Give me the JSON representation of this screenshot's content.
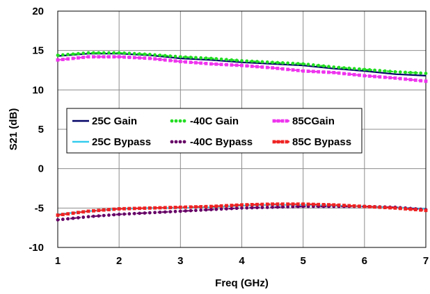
{
  "chart_data": {
    "type": "line",
    "xlabel": "Freq (GHz)",
    "ylabel": "S21 (dB)",
    "xlim": [
      1,
      7
    ],
    "ylim": [
      -10,
      20
    ],
    "x_ticks": [
      "1",
      "2",
      "3",
      "4",
      "5",
      "6",
      "7"
    ],
    "y_ticks": [
      "-10",
      "-5",
      "0",
      "5",
      "10",
      "15",
      "20"
    ],
    "grid": true,
    "legend_placement": "center-left",
    "series": [
      {
        "name": "25C Gain",
        "color": "#000066",
        "style": "solid",
        "marker": "none",
        "x": [
          1,
          1.5,
          2,
          2.5,
          3,
          3.5,
          4,
          4.5,
          5,
          5.5,
          6,
          6.5,
          7
        ],
        "y": [
          14.3,
          14.6,
          14.6,
          14.4,
          14.0,
          13.8,
          13.5,
          13.3,
          13.1,
          12.7,
          12.4,
          12.0,
          11.8
        ]
      },
      {
        "name": "-40C Gain",
        "color": "#22dd22",
        "style": "dotted",
        "marker": "circle",
        "x": [
          1,
          1.5,
          2,
          2.5,
          3,
          3.5,
          4,
          4.5,
          5,
          5.5,
          6,
          6.5,
          7
        ],
        "y": [
          14.4,
          14.7,
          14.7,
          14.5,
          14.2,
          14.0,
          13.7,
          13.5,
          13.3,
          12.9,
          12.6,
          12.3,
          12.1
        ]
      },
      {
        "name": "85CGain",
        "color": "#ee33ee",
        "style": "dashed",
        "marker": "square",
        "x": [
          1,
          1.5,
          2,
          2.5,
          3,
          3.5,
          4,
          4.5,
          5,
          5.5,
          6,
          6.5,
          7
        ],
        "y": [
          13.8,
          14.2,
          14.2,
          14.0,
          13.6,
          13.3,
          13.1,
          12.8,
          12.4,
          12.2,
          11.8,
          11.5,
          11.1
        ]
      },
      {
        "name": "25C Bypass",
        "color": "#33ccee",
        "style": "solid",
        "marker": "none",
        "x": [
          1,
          1.5,
          2,
          2.5,
          3,
          3.5,
          4,
          4.5,
          5,
          5.5,
          6,
          6.5,
          7
        ],
        "y": [
          -5.8,
          -5.4,
          -5.1,
          -5.0,
          -5.0,
          -4.9,
          -4.7,
          -4.6,
          -4.6,
          -4.7,
          -4.8,
          -4.9,
          -5.1
        ]
      },
      {
        "name": "-40C Bypass",
        "color": "#660066",
        "style": "dotted",
        "marker": "circle",
        "x": [
          1,
          1.5,
          2,
          2.5,
          3,
          3.5,
          4,
          4.5,
          5,
          5.5,
          6,
          6.5,
          7
        ],
        "y": [
          -6.5,
          -6.1,
          -5.8,
          -5.6,
          -5.4,
          -5.2,
          -5.0,
          -4.9,
          -4.8,
          -4.8,
          -4.8,
          -4.9,
          -5.2
        ]
      },
      {
        "name": "85C Bypass",
        "color": "#ee2222",
        "style": "dashed",
        "marker": "square",
        "x": [
          1,
          1.5,
          2,
          2.5,
          3,
          3.5,
          4,
          4.5,
          5,
          5.5,
          6,
          6.5,
          7
        ],
        "y": [
          -5.9,
          -5.4,
          -5.1,
          -5.0,
          -4.9,
          -4.8,
          -4.6,
          -4.5,
          -4.5,
          -4.6,
          -4.8,
          -5.0,
          -5.3
        ]
      }
    ]
  }
}
